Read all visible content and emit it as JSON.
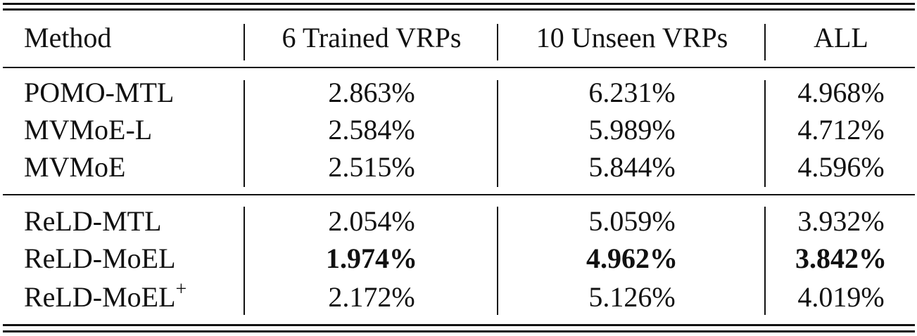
{
  "table": {
    "header": [
      "Method",
      "6 Trained VRPs",
      "10 Unseen VRPs",
      "ALL"
    ],
    "groups": [
      {
        "rows": [
          {
            "method": "POMO-MTL",
            "trained": "2.863%",
            "unseen": "6.231%",
            "all": "4.968%"
          },
          {
            "method": "MVMoE-L",
            "trained": "2.584%",
            "unseen": "5.989%",
            "all": "4.712%"
          },
          {
            "method": "MVMoE",
            "trained": "2.515%",
            "unseen": "5.844%",
            "all": "4.596%"
          }
        ]
      },
      {
        "rows": [
          {
            "method": "ReLD-MTL",
            "trained": "2.054%",
            "unseen": "5.059%",
            "all": "3.932%"
          },
          {
            "method": "ReLD-MoEL",
            "trained": "1.974%",
            "unseen": "4.962%",
            "all": "3.842%",
            "bold": true
          },
          {
            "method": "ReLD-MoEL",
            "method_sup": "+",
            "trained": "2.172%",
            "unseen": "5.126%",
            "all": "4.019%"
          }
        ]
      }
    ]
  }
}
